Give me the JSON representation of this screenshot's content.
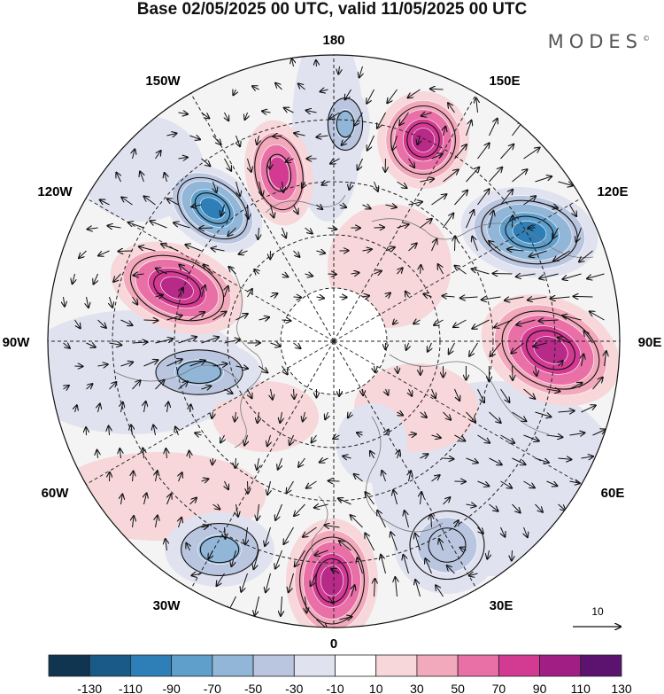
{
  "title": "Base 02/05/2025 00 UTC, valid 11/05/2025 00 UTC",
  "brand": "MODES",
  "brand_mark": "©",
  "longitude_labels": {
    "top": "180",
    "top_left": "150W",
    "top_right": "150E",
    "upper_left": "120W",
    "upper_right": "120E",
    "left": "90W",
    "right": "90E",
    "lower_left": "60W",
    "lower_right": "60E",
    "bottom_left": "30W",
    "bottom_right": "30E",
    "bottom": "0"
  },
  "vector_scale": {
    "label": "10"
  },
  "colorbar": {
    "labels": [
      "-130",
      "-110",
      "-90",
      "-70",
      "-50",
      "-30",
      "-10",
      "10",
      "30",
      "50",
      "70",
      "90",
      "110",
      "130"
    ],
    "colors": [
      "#0f3550",
      "#1a5a88",
      "#2e7fb8",
      "#5e9fcc",
      "#91b6d8",
      "#bac6e0",
      "#e0e2f0",
      "#ffffff",
      "#f7d7d9",
      "#f2a9bb",
      "#e870a6",
      "#d33b93",
      "#a11f84",
      "#5c136f"
    ]
  },
  "anomalies": [
    {
      "name": "low-nw-pacific",
      "sign": "neg",
      "level": 4
    },
    {
      "name": "high-nw",
      "sign": "pos",
      "level": 3
    },
    {
      "name": "low-bering",
      "sign": "neg",
      "level": 2
    },
    {
      "name": "high-kamchatka",
      "sign": "pos",
      "level": 4
    },
    {
      "name": "low-east-siberia",
      "sign": "neg",
      "level": 4
    },
    {
      "name": "high-west-canada",
      "sign": "pos",
      "level": 4
    },
    {
      "name": "high-siberia",
      "sign": "pos",
      "level": 4
    },
    {
      "name": "low-hudson",
      "sign": "neg",
      "level": 2
    },
    {
      "name": "high-north-atlantic",
      "sign": "pos",
      "level": 4
    },
    {
      "name": "low-mid-atlantic",
      "sign": "neg",
      "level": 2
    },
    {
      "name": "low-europe",
      "sign": "neg",
      "level": 1
    }
  ]
}
